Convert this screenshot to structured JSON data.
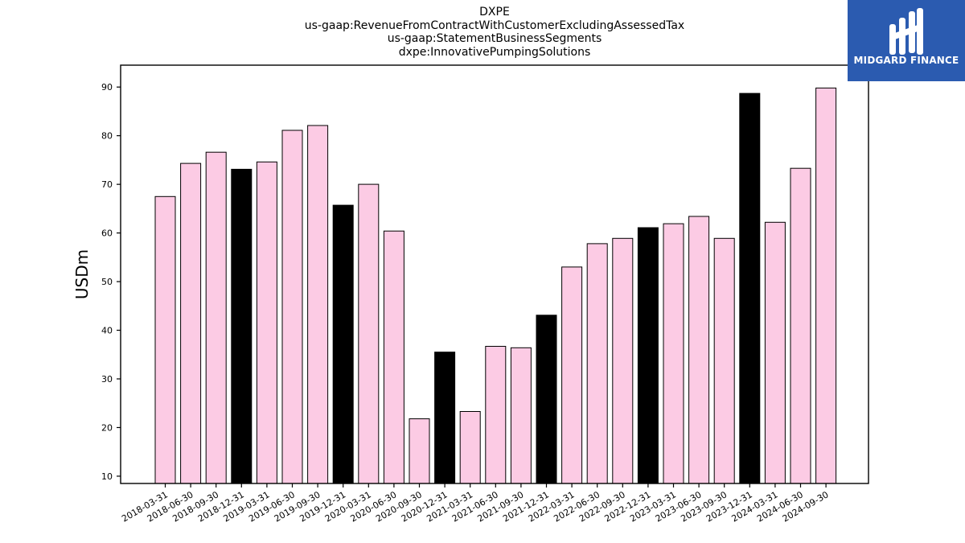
{
  "header": {
    "title_lines": [
      "DXPE",
      "us-gaap:RevenueFromContractWithCustomerExcludingAssessedTax",
      "us-gaap:StatementBusinessSegments",
      "dxpe:InnovativePumpingSolutions"
    ]
  },
  "logo": {
    "text": "MIDGARD FINANCE",
    "icon": "midgard-logo-icon",
    "background": "#2b5bb0"
  },
  "chart_data": {
    "type": "bar",
    "title": "DXPE\nus-gaap:RevenueFromContractWithCustomerExcludingAssessedTax\nus-gaap:StatementBusinessSegments\ndxpe:InnovativePumpingSolutions",
    "xlabel": "",
    "ylabel": "USDm",
    "ylim": [
      8.5,
      94.5
    ],
    "yticks": [
      10,
      20,
      30,
      40,
      50,
      60,
      70,
      80,
      90
    ],
    "grid": false,
    "colors": {
      "quarter": "#fccbe4",
      "year_end": "#000000",
      "edge": "#000000"
    },
    "categories": [
      "2018-03-31",
      "2018-06-30",
      "2018-09-30",
      "2018-12-31",
      "2019-03-31",
      "2019-06-30",
      "2019-09-30",
      "2019-12-31",
      "2020-03-31",
      "2020-06-30",
      "2020-09-30",
      "2020-12-31",
      "2021-03-31",
      "2021-06-30",
      "2021-09-30",
      "2021-12-31",
      "2022-03-31",
      "2022-06-30",
      "2022-09-30",
      "2022-12-31",
      "2023-03-31",
      "2023-06-30",
      "2023-09-30",
      "2023-12-31",
      "2024-03-31",
      "2024-06-30",
      "2024-09-30"
    ],
    "values": [
      67.5,
      74.3,
      76.6,
      73.1,
      74.6,
      81.1,
      82.1,
      65.7,
      70.0,
      60.4,
      21.8,
      35.5,
      23.3,
      36.7,
      36.4,
      43.1,
      53.0,
      57.8,
      58.9,
      61.1,
      61.9,
      63.4,
      58.9,
      88.7,
      62.2,
      73.3,
      89.8
    ]
  }
}
